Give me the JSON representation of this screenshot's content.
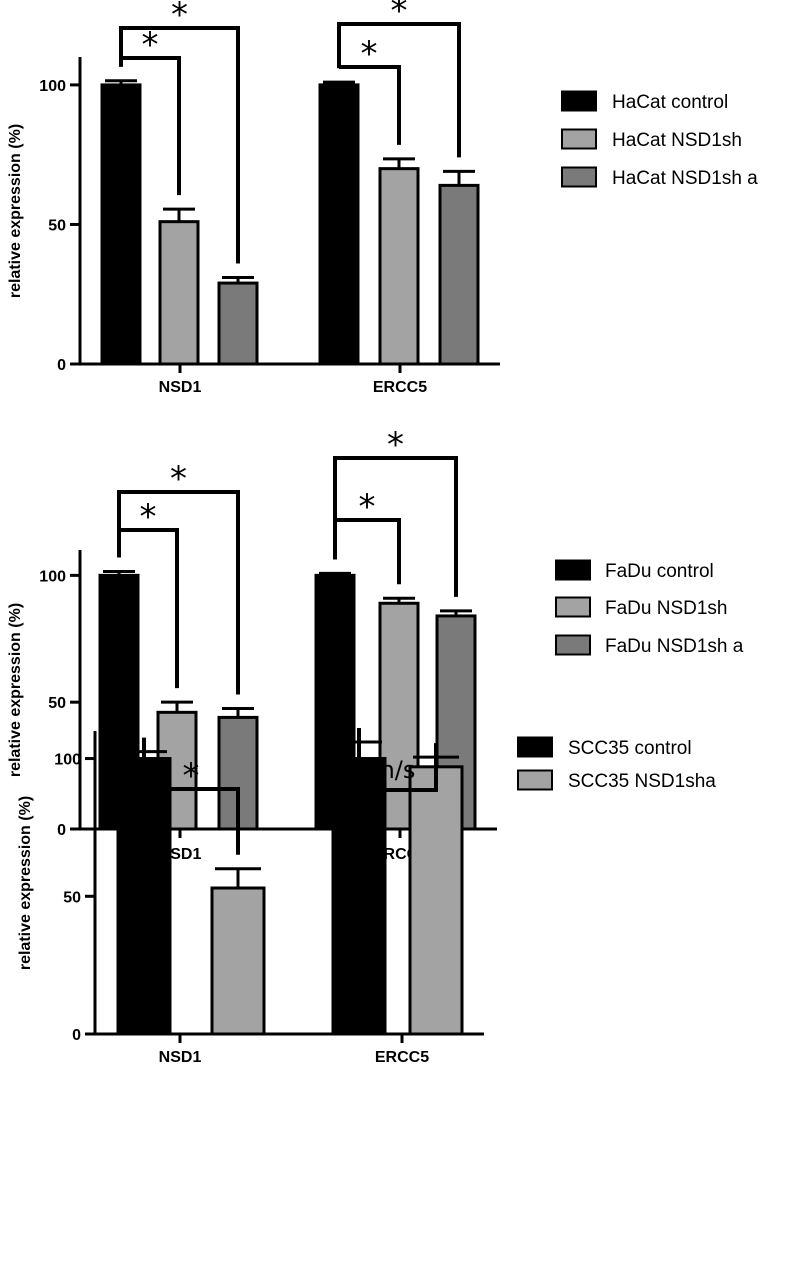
{
  "chart_data": [
    {
      "type": "bar",
      "ylabel": "relative expression (%)",
      "yticks": [
        "0",
        "50",
        "100"
      ],
      "ylim": [
        0,
        110
      ],
      "categories": [
        "NSD1",
        "ERCC5"
      ],
      "series": [
        {
          "name": "HaCat control",
          "color": "#000000",
          "values": [
            100,
            100
          ],
          "errors": [
            1.5,
            1
          ]
        },
        {
          "name": "HaCat NSD1sh",
          "color": "#a3a3a3",
          "values": [
            51,
            70
          ],
          "errors": [
            4.5,
            3.5
          ]
        },
        {
          "name": "HaCat NSD1sh a",
          "color": "#7a7a7a",
          "values": [
            29,
            64
          ],
          "errors": [
            2,
            5
          ]
        }
      ],
      "annotations": [
        {
          "category": "NSD1",
          "from_series": 0,
          "to_series": 1,
          "label": "*"
        },
        {
          "category": "NSD1",
          "from_series": 0,
          "to_series": 2,
          "label": "*"
        },
        {
          "category": "ERCC5",
          "from_series": 0,
          "to_series": 1,
          "label": "*"
        },
        {
          "category": "ERCC5",
          "from_series": 0,
          "to_series": 2,
          "label": "*"
        }
      ],
      "legend_position": "right"
    },
    {
      "type": "bar",
      "ylabel": "relative expression (%)",
      "yticks": [
        "0",
        "50",
        "100"
      ],
      "ylim": [
        0,
        110
      ],
      "categories": [
        "NSD1",
        "ERCC5"
      ],
      "series": [
        {
          "name": "FaDu control",
          "color": "#000000",
          "values": [
            100,
            100
          ],
          "errors": [
            1.5,
            0.8
          ]
        },
        {
          "name": "FaDu NSD1sh",
          "color": "#a3a3a3",
          "values": [
            46,
            89
          ],
          "errors": [
            4,
            2
          ]
        },
        {
          "name": "FaDu NSD1sh a",
          "color": "#7a7a7a",
          "values": [
            44,
            84
          ],
          "errors": [
            3.5,
            2
          ]
        }
      ],
      "annotations": [
        {
          "category": "NSD1",
          "from_series": 0,
          "to_series": 1,
          "label": "*"
        },
        {
          "category": "NSD1",
          "from_series": 0,
          "to_series": 2,
          "label": "*"
        },
        {
          "category": "ERCC5",
          "from_series": 0,
          "to_series": 1,
          "label": "*"
        },
        {
          "category": "ERCC5",
          "from_series": 0,
          "to_series": 2,
          "label": "*"
        }
      ],
      "legend_position": "right"
    },
    {
      "type": "bar",
      "ylabel": "relative expression (%)",
      "yticks": [
        "0",
        "50",
        "100"
      ],
      "ylim": [
        0,
        110
      ],
      "categories": [
        "NSD1",
        "ERCC5"
      ],
      "series": [
        {
          "name": "SCC35 control",
          "color": "#000000",
          "values": [
            100,
            100
          ],
          "errors": [
            2.5,
            6
          ]
        },
        {
          "name": "SCC35  NSD1sha",
          "color": "#a3a3a3",
          "values": [
            53,
            97
          ],
          "errors": [
            7,
            3.5
          ]
        }
      ],
      "annotations": [
        {
          "category": "NSD1",
          "from_series": 0,
          "to_series": 1,
          "label": "*"
        },
        {
          "category": "ERCC5",
          "from_series": 0,
          "to_series": 1,
          "label": "n/s"
        }
      ],
      "legend_position": "right"
    }
  ]
}
